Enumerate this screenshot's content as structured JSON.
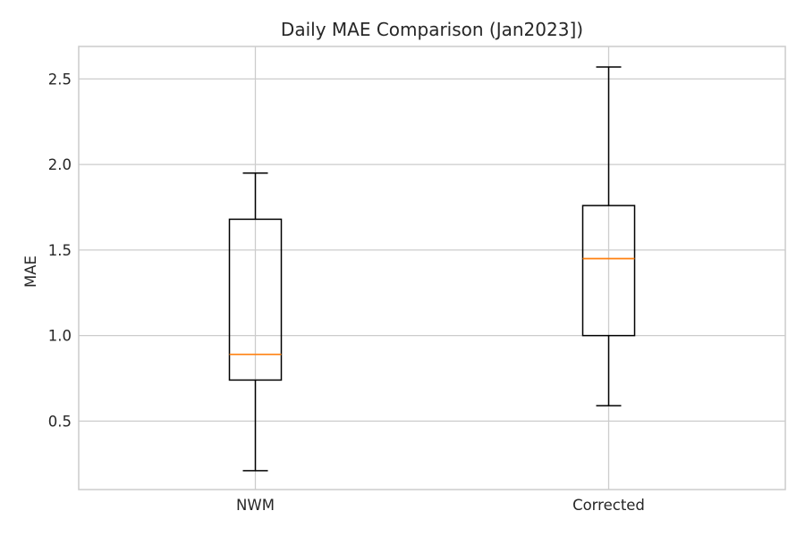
{
  "chart_data": {
    "type": "boxplot",
    "title": "Daily MAE Comparison (Jan2023])",
    "xlabel": "",
    "ylabel": "MAE",
    "ylim": [
      0.1,
      2.69
    ],
    "yticks": [
      "0.5",
      "1.0",
      "1.5",
      "2.0",
      "2.5"
    ],
    "grid": true,
    "categories": [
      "NWM",
      "Corrected"
    ],
    "boxes": [
      {
        "whisker_low": 0.21,
        "q1": 0.74,
        "median": 0.89,
        "q3": 1.68,
        "whisker_high": 1.95
      },
      {
        "whisker_low": 0.59,
        "q1": 1.0,
        "median": 1.45,
        "q3": 1.76,
        "whisker_high": 2.57
      }
    ],
    "colors": {
      "box": "#000000",
      "median": "#ff7f0e",
      "grid": "#cccccc",
      "frame": "#cccccc"
    }
  }
}
